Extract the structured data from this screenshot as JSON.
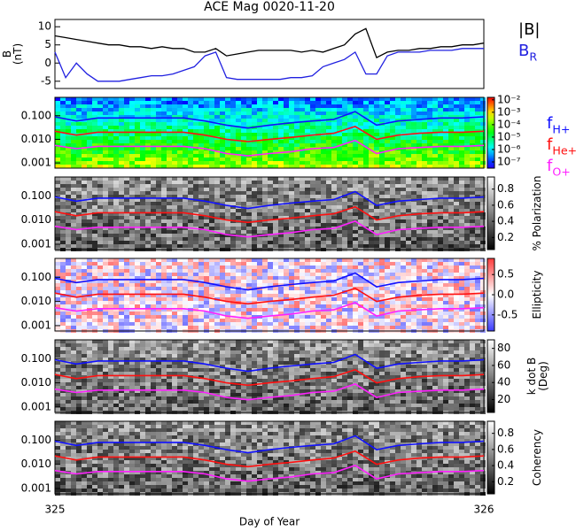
{
  "chart_data": [
    {
      "type": "line",
      "title": "ACE Mag 0020-11-20",
      "ylabel": [
        "B",
        "(nT)"
      ],
      "x": [
        325,
        325.025,
        325.05,
        325.075,
        325.1,
        325.125,
        325.15,
        325.175,
        325.2,
        325.225,
        325.25,
        325.275,
        325.3,
        325.325,
        325.35,
        325.375,
        325.4,
        325.425,
        325.45,
        325.475,
        325.5,
        325.525,
        325.55,
        325.575,
        325.6,
        325.625,
        325.65,
        325.675,
        325.7,
        325.725,
        325.75,
        325.775,
        325.8,
        325.825,
        325.85,
        325.875,
        325.9,
        325.925,
        325.95,
        325.975,
        326
      ],
      "series": [
        {
          "name": "|B|",
          "color": "#000000",
          "values": [
            7.5,
            7,
            6.5,
            6,
            5.5,
            5,
            5,
            4.5,
            4.5,
            4,
            4.5,
            4,
            4,
            3,
            3,
            4,
            2,
            2.5,
            3,
            3.5,
            3.5,
            3.5,
            3.5,
            3,
            3.5,
            3,
            4,
            5,
            8,
            9.5,
            1.5,
            3,
            3.5,
            3.5,
            4,
            4,
            4.5,
            4.5,
            5,
            5,
            5.5
          ]
        },
        {
          "name": "B",
          "subscript": "R",
          "color": "#2020e0",
          "values": [
            3,
            -4,
            0,
            -3,
            -5,
            -5,
            -5,
            -4.5,
            -4,
            -3.5,
            -3.5,
            -3,
            -2,
            -1,
            2,
            3,
            -4,
            -4.5,
            -4.5,
            -4.5,
            -4.5,
            -4.5,
            -4,
            -4,
            -3.5,
            -1,
            0,
            1,
            3,
            -3,
            -3,
            2,
            3,
            3,
            3,
            3.5,
            3.5,
            3.5,
            4,
            4,
            4
          ]
        }
      ],
      "xlim": [
        325,
        326
      ],
      "ylim": [
        -7,
        12
      ],
      "yticks": [
        -5,
        0,
        5,
        10
      ]
    },
    {
      "type": "spectrogram",
      "xlabel": "Day of Year",
      "x": [
        325,
        325.05,
        325.1,
        325.15,
        325.2,
        325.25,
        325.3,
        325.35,
        325.4,
        325.45,
        325.5,
        325.55,
        325.6,
        325.65,
        325.7,
        325.75,
        325.8,
        325.85,
        325.9,
        325.95,
        326
      ],
      "series": [
        {
          "name": "f",
          "subscript": "H+",
          "color": "#1010ff",
          "values": [
            0.09,
            0.06,
            0.08,
            0.08,
            0.08,
            0.08,
            0.08,
            0.06,
            0.04,
            0.03,
            0.04,
            0.05,
            0.06,
            0.07,
            0.15,
            0.04,
            0.06,
            0.07,
            0.08,
            0.08,
            0.09
          ]
        },
        {
          "name": "f",
          "subscript": "He+",
          "color": "#ff1010",
          "values": [
            0.022,
            0.015,
            0.02,
            0.02,
            0.02,
            0.02,
            0.02,
            0.015,
            0.01,
            0.008,
            0.01,
            0.012,
            0.015,
            0.018,
            0.035,
            0.01,
            0.015,
            0.018,
            0.02,
            0.02,
            0.022
          ]
        },
        {
          "name": "f",
          "subscript": "O+",
          "color": "#ff20ff",
          "values": [
            0.0055,
            0.004,
            0.005,
            0.005,
            0.005,
            0.005,
            0.005,
            0.004,
            0.0025,
            0.002,
            0.0025,
            0.003,
            0.004,
            0.0045,
            0.009,
            0.0025,
            0.004,
            0.0045,
            0.005,
            0.005,
            0.0055
          ]
        }
      ],
      "xlim": [
        325,
        326
      ],
      "xticks": [
        325,
        326
      ],
      "ylim": [
        0.0006,
        0.6
      ],
      "log_y": true,
      "yticks": [
        {
          "value": 0.1,
          "label": "0.100"
        },
        {
          "value": 0.01,
          "label": "0.010"
        },
        {
          "value": 0.001,
          "label": "0.001"
        }
      ],
      "panels": [
        {
          "colormap": "rainbow",
          "clim": [
            -7.5,
            -1.8
          ],
          "cticks": [
            {
              "value": -2,
              "label": "10⁻²"
            },
            {
              "value": -3,
              "label": "10⁻³"
            },
            {
              "value": -4,
              "label": "10⁻⁴"
            },
            {
              "value": -5,
              "label": "10⁻⁵"
            },
            {
              "value": -6,
              "label": "10⁻⁶"
            },
            {
              "value": -7,
              "label": "10⁻⁷"
            }
          ]
        },
        {
          "colormap": "gray",
          "clim": [
            0.05,
            0.95
          ],
          "cticks": [
            0.2,
            0.4,
            0.6,
            0.8
          ],
          "clabel": [
            "% Polarization"
          ]
        },
        {
          "colormap": "bwr",
          "clim": [
            -0.9,
            0.9
          ],
          "cticks": [
            0.5,
            {
              "value": 0,
              "label": "0.0"
            },
            -0.5
          ],
          "clabel": [
            "Ellipticity"
          ]
        },
        {
          "colormap": "gray",
          "clim": [
            5,
            90
          ],
          "cticks": [
            20,
            40,
            60,
            80
          ],
          "clabel": [
            "k dot B",
            "(Deg)"
          ]
        },
        {
          "colormap": "gray",
          "clim": [
            0.05,
            0.95
          ],
          "cticks": [
            0.2,
            0.4,
            0.6,
            0.8
          ],
          "clabel": [
            "Coherency"
          ]
        }
      ]
    }
  ]
}
